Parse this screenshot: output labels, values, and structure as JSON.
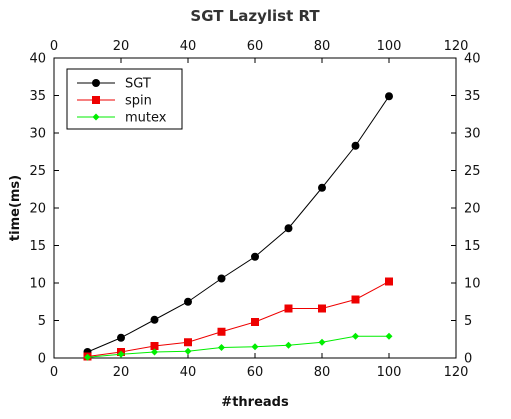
{
  "chart_data": {
    "type": "line",
    "title": "SGT Lazylist RT",
    "xlabel": "#threads",
    "ylabel": "time(ms)",
    "xlim": [
      0,
      120
    ],
    "ylim": [
      0,
      40
    ],
    "xticks": [
      0,
      20,
      40,
      60,
      80,
      100,
      120
    ],
    "yticks": [
      0,
      5,
      10,
      15,
      20,
      25,
      30,
      35,
      40
    ],
    "x": [
      10,
      20,
      30,
      40,
      50,
      60,
      70,
      80,
      90,
      100
    ],
    "grid": false,
    "mirror_axes": true,
    "legend_position": "top-left",
    "series": [
      {
        "name": "SGT",
        "color": "#000000",
        "marker": "circle",
        "values": [
          0.8,
          2.7,
          5.1,
          7.5,
          10.6,
          13.5,
          17.3,
          22.7,
          28.3,
          34.9
        ]
      },
      {
        "name": "spin",
        "color": "#ee0000",
        "marker": "square",
        "values": [
          0.2,
          0.8,
          1.6,
          2.1,
          3.5,
          4.8,
          6.6,
          6.6,
          7.8,
          10.2
        ]
      },
      {
        "name": "mutex",
        "color": "#00ee00",
        "marker": "diamond",
        "values": [
          0.1,
          0.5,
          0.8,
          0.9,
          1.4,
          1.5,
          1.7,
          2.1,
          2.9,
          2.9
        ]
      }
    ]
  }
}
